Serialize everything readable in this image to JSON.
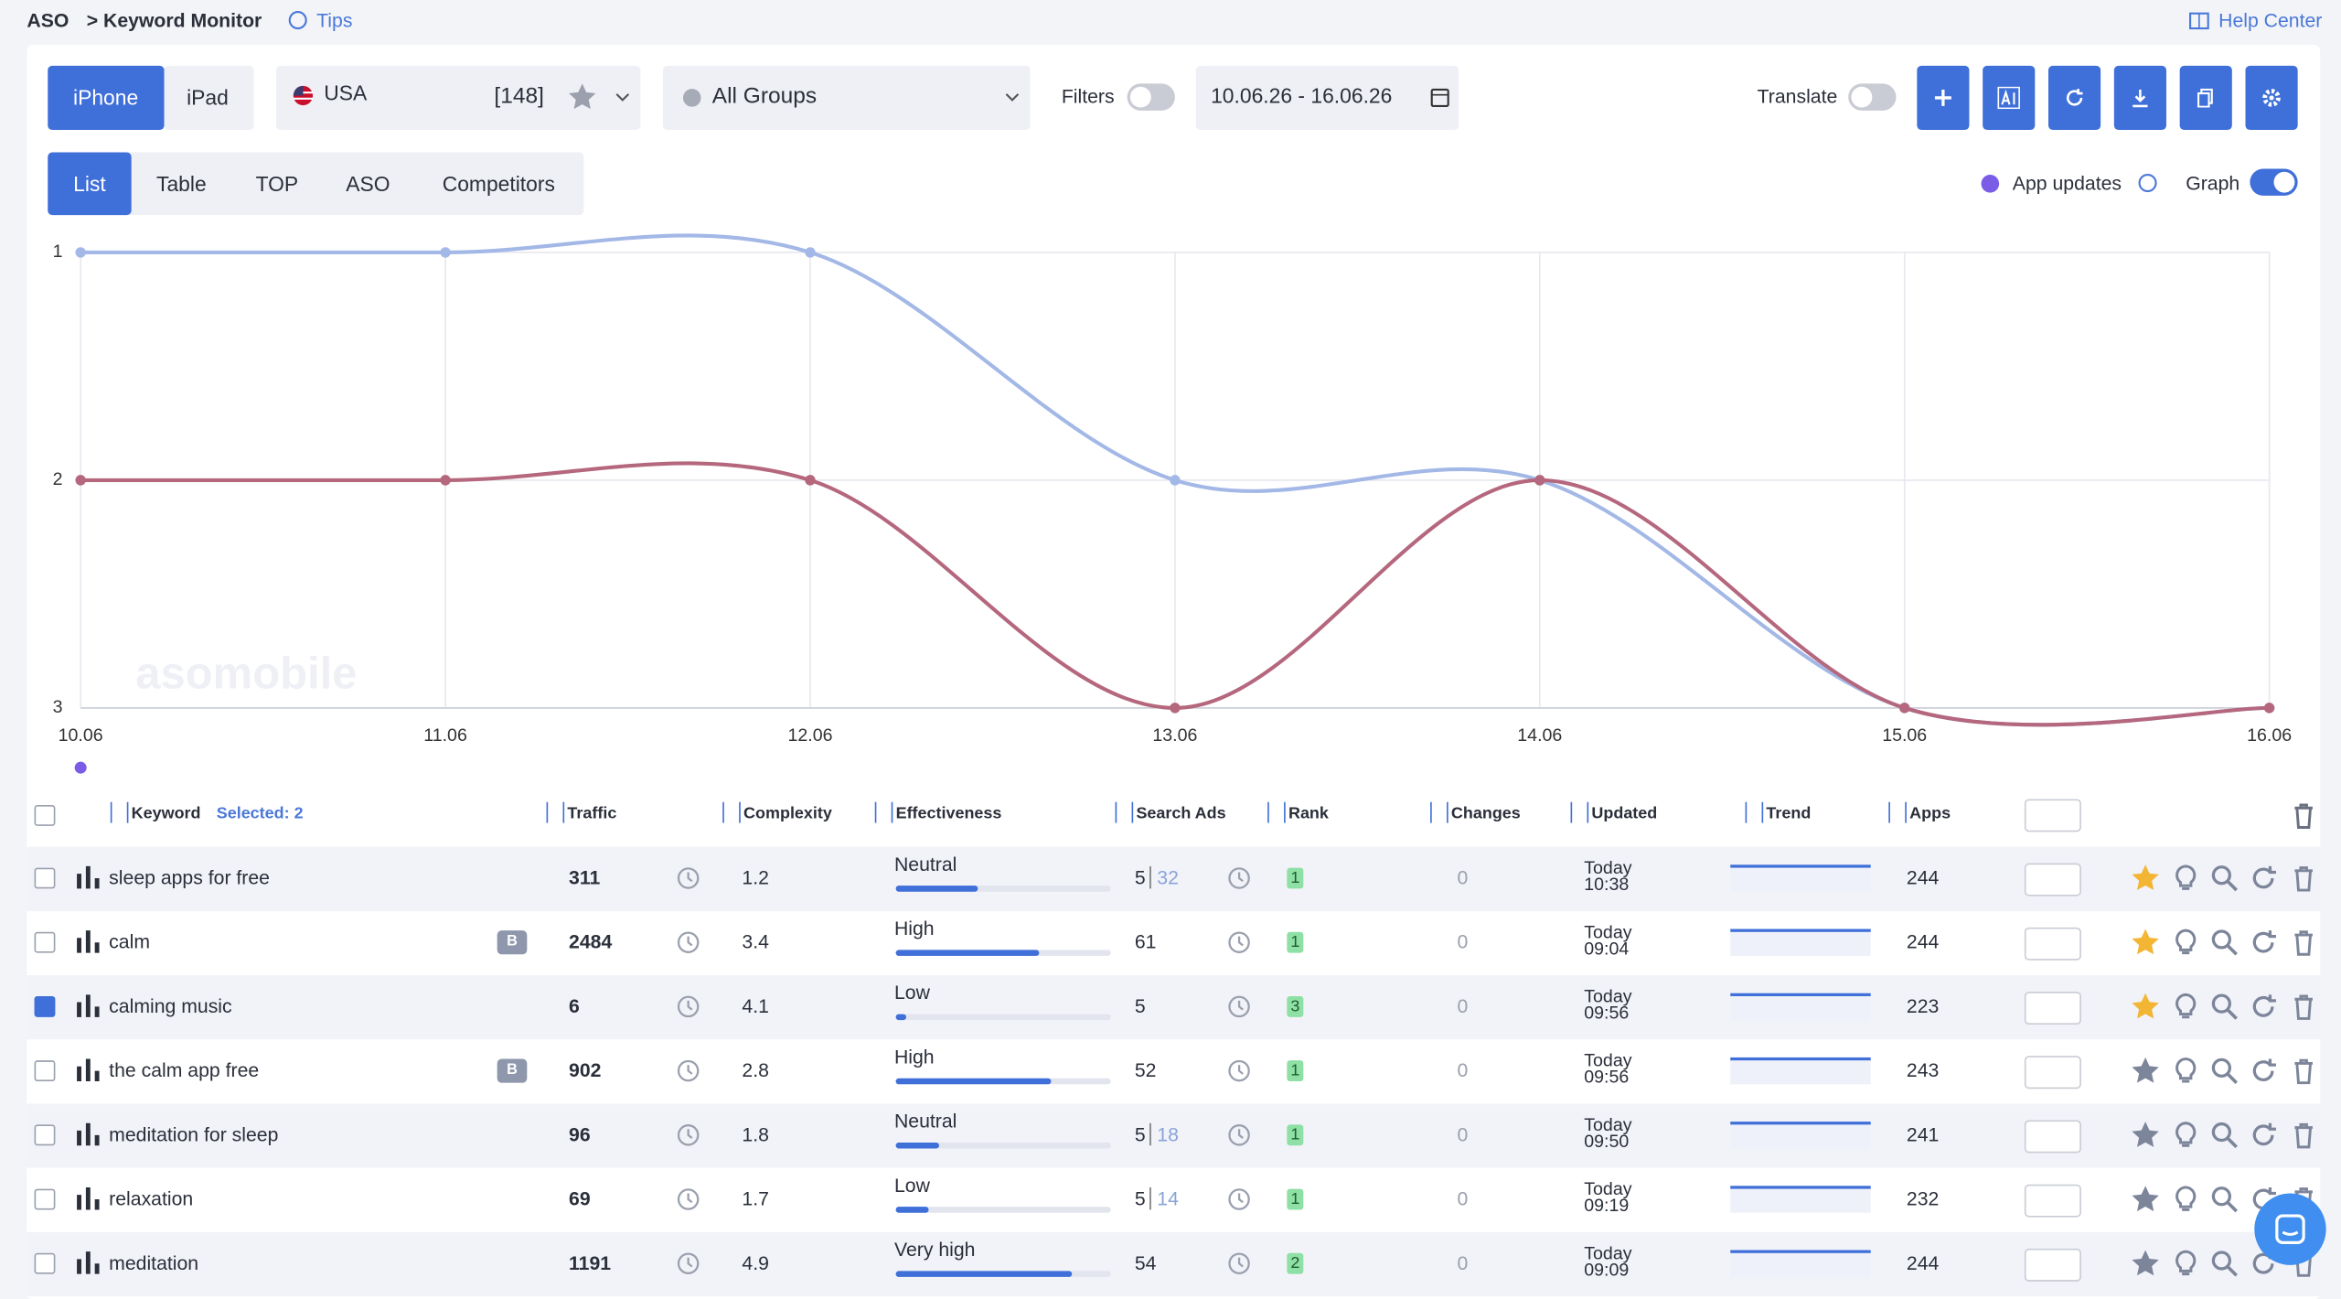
{
  "header": {
    "root": "ASO",
    "page": "> Keyword Monitor",
    "tips": "Tips",
    "help": "Help Center"
  },
  "toolbar": {
    "devices": [
      "iPhone",
      "iPad"
    ],
    "country": "USA",
    "count": "[148]",
    "groups": "All Groups",
    "filters": "Filters",
    "date_range": "10.06.26 - 16.06.26",
    "translate": "Translate"
  },
  "tabs": [
    "List",
    "Table",
    "TOP",
    "ASO",
    "Competitors"
  ],
  "app_updates": "App updates",
  "graph": "Graph",
  "chart_data": {
    "type": "line",
    "watermark": "asomobile",
    "x": [
      "10.06",
      "11.06",
      "12.06",
      "13.06",
      "14.06",
      "15.06",
      "16.06"
    ],
    "series": [
      {
        "color": "#a3b8e6",
        "values": [
          1,
          1,
          1,
          2,
          2,
          3,
          3
        ]
      },
      {
        "color": "#b5677e",
        "values": [
          2,
          2,
          2,
          3,
          2,
          3,
          3
        ]
      }
    ],
    "ylim": [
      1,
      3
    ],
    "y_inverted": true,
    "yticks": [
      1,
      2,
      3
    ],
    "grid": true
  },
  "table": {
    "columns": [
      "Keyword",
      "Selected: 2",
      "Traffic",
      "Complexity",
      "Effectiveness",
      "Search Ads",
      "Rank",
      "Changes",
      "Updated",
      "Trend",
      "Apps"
    ],
    "rows": [
      {
        "keyword": "sleep apps for free",
        "traffic": 311,
        "complexity": 1.2,
        "effectiveness": "Neutral",
        "effectiveness_score": 38,
        "search_ads": 5,
        "search_ads_extra": 32,
        "rank": 1,
        "changes": 0,
        "updated_day": "Today",
        "updated_time": "10:38",
        "apps": 244,
        "checked": false,
        "starred": true
      },
      {
        "keyword": "calm",
        "badge": "B",
        "traffic": 2484,
        "complexity": 3.4,
        "effectiveness": "High",
        "effectiveness_score": 67,
        "search_ads": 61,
        "rank": 1,
        "changes": 0,
        "updated_day": "Today",
        "updated_time": "09:04",
        "apps": 244,
        "checked": false,
        "starred": true
      },
      {
        "keyword": "calming music",
        "traffic": 6,
        "complexity": 4.1,
        "effectiveness": "Low",
        "effectiveness_score": 5,
        "search_ads": 5,
        "rank": 3,
        "changes": 0,
        "updated_day": "Today",
        "updated_time": "09:56",
        "apps": 223,
        "checked": true,
        "starred": true
      },
      {
        "keyword": "the calm app free",
        "badge": "B",
        "traffic": 902,
        "complexity": 2.8,
        "effectiveness": "High",
        "effectiveness_score": 72,
        "search_ads": 52,
        "rank": 1,
        "changes": 0,
        "updated_day": "Today",
        "updated_time": "09:56",
        "apps": 243,
        "checked": false,
        "starred": false
      },
      {
        "keyword": "meditation for sleep",
        "traffic": 96,
        "complexity": 1.8,
        "effectiveness": "Neutral",
        "effectiveness_score": 20,
        "search_ads": 5,
        "search_ads_extra": 18,
        "rank": 1,
        "changes": 0,
        "updated_day": "Today",
        "updated_time": "09:50",
        "apps": 241,
        "checked": false,
        "starred": false
      },
      {
        "keyword": "relaxation",
        "traffic": 69,
        "complexity": 1.7,
        "effectiveness": "Low",
        "effectiveness_score": 15,
        "search_ads": 5,
        "search_ads_extra": 14,
        "rank": 1,
        "changes": 0,
        "updated_day": "Today",
        "updated_time": "09:19",
        "apps": 232,
        "checked": false,
        "starred": false
      },
      {
        "keyword": "meditation",
        "traffic": 1191,
        "complexity": 4.9,
        "effectiveness": "Very high",
        "effectiveness_score": 82,
        "search_ads": 54,
        "rank": 2,
        "changes": 0,
        "updated_day": "Today",
        "updated_time": "09:09",
        "apps": 244,
        "checked": false,
        "starred": false
      }
    ]
  }
}
